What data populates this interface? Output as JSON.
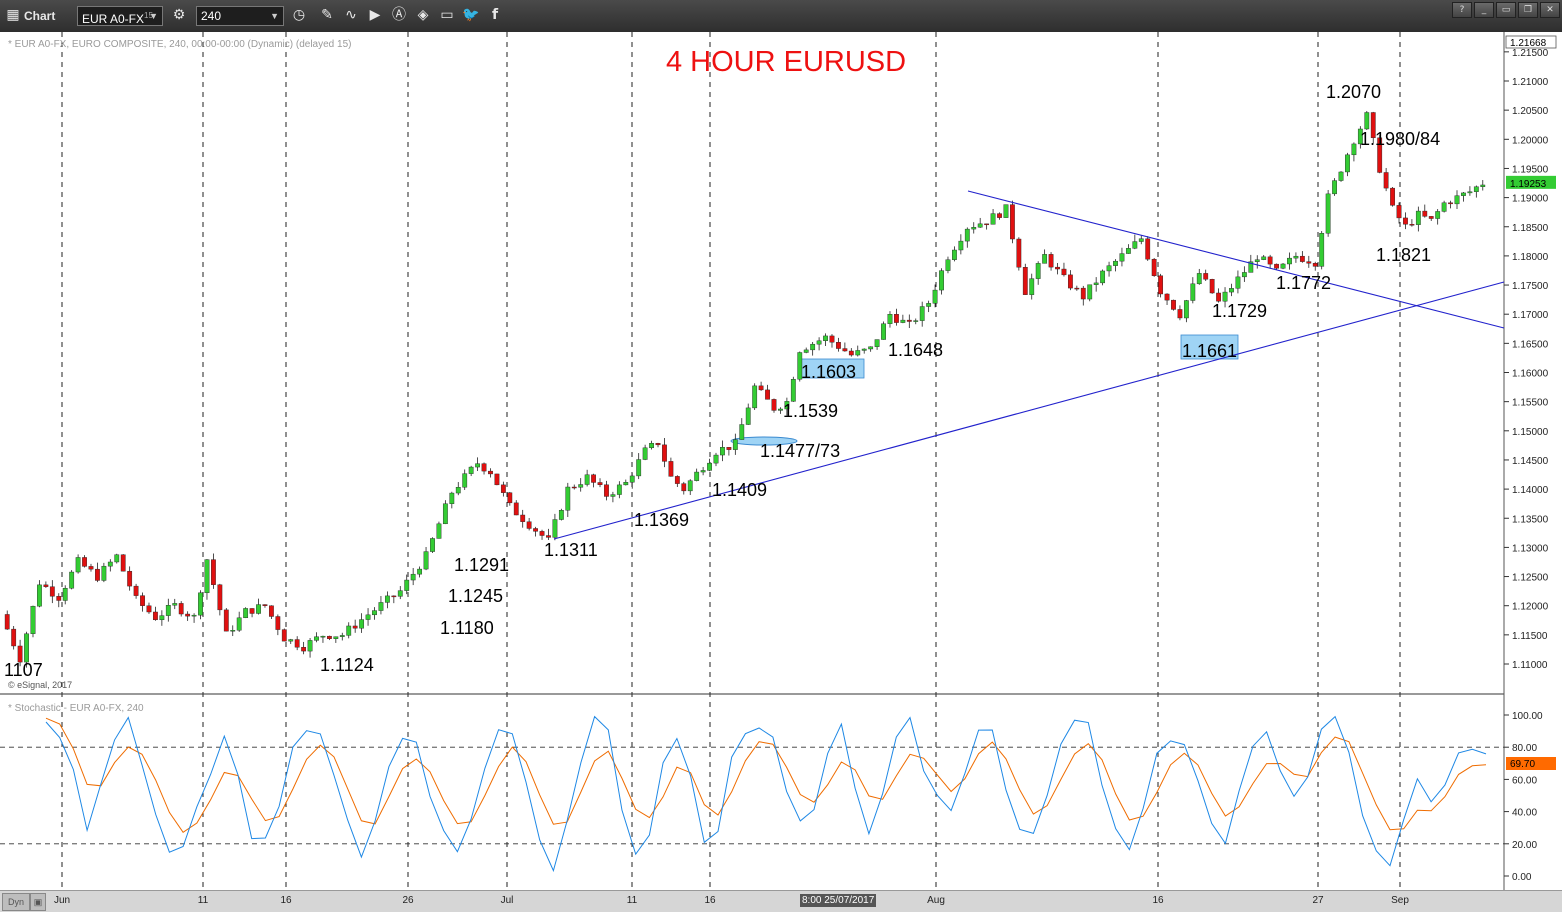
{
  "toolbar": {
    "app_title": "Chart",
    "symbol": "EUR A0-FX",
    "symbol_badge": "15",
    "interval": "240",
    "icons": [
      "grid-icon",
      "gear-icon",
      "clock-icon",
      "pencil-icon",
      "curve-icon",
      "play-icon",
      "a-icon",
      "tag-icon",
      "chat-icon",
      "twitter-icon",
      "facebook-icon",
      "help-icon",
      "minimize-icon",
      "restore-icon",
      "close-icon"
    ]
  },
  "main_panel": {
    "info_line": "* EUR A0-FX, EURO COMPOSITE, 240, 00:00-00:00 (Dynamic) (delayed 15)",
    "copyright": "© eSignal, 2017",
    "title": "4 HOUR EURUSD",
    "last_price": "1.19253",
    "top_price": "1.21668"
  },
  "stoch_panel": {
    "info_line": "* Stochastic - EUR A0-FX, 240",
    "current_value": "69.70",
    "ticks": [
      "100.00",
      "80.00",
      "60.00",
      "40.00",
      "20.00",
      "0.00"
    ]
  },
  "bottom_bar": {
    "dyn_label": "Dyn",
    "cursor_time": "8:00 25/07/2017"
  },
  "colors": {
    "up_candle": "#33cc33",
    "down_candle": "#e01010",
    "trendline": "#2222cc",
    "title": "#ee1111",
    "stoch_k": "#1e88e5",
    "stoch_d": "#ef6c00",
    "highlight": "#9fd4f5",
    "current_stoch": "#ff6a00"
  },
  "chart_data": [
    {
      "type": "candlestick",
      "title": "4 HOUR EURUSD",
      "symbol": "EUR A0-FX",
      "x_ticks": [
        "Jun",
        "11",
        "16",
        "26",
        "Jul",
        "11",
        "16",
        "Aug",
        "16",
        "27",
        "Sep"
      ],
      "y_ticks": [
        "1.21500",
        "1.21000",
        "1.20500",
        "1.20000",
        "1.19500",
        "1.19000",
        "1.18500",
        "1.18000",
        "1.17500",
        "1.17000",
        "1.16500",
        "1.16000",
        "1.15500",
        "1.15000",
        "1.14500",
        "1.14000",
        "1.13500",
        "1.13000",
        "1.12500",
        "1.12000",
        "1.11500",
        "1.11000"
      ],
      "ylim": [
        1.1055,
        1.2183
      ],
      "last_value": 1.19253,
      "annotations": [
        "1107",
        "1.1124",
        "1.1180",
        "1.1245",
        "1.1291",
        "1.1311",
        "1.1369",
        "1.1409",
        "1.1477/73",
        "1.1539",
        "1.1603",
        "1.1648",
        "1.1661",
        "1.1729",
        "1.1772",
        "1.1821",
        "1.1980/84",
        "1.2070"
      ],
      "price_path": [
        [
          0,
          1.1185
        ],
        [
          3,
          1.111
        ],
        [
          6,
          1.124
        ],
        [
          9,
          1.1215
        ],
        [
          12,
          1.1275
        ],
        [
          15,
          1.125
        ],
        [
          18,
          1.1285
        ],
        [
          21,
          1.121
        ],
        [
          24,
          1.118
        ],
        [
          27,
          1.12
        ],
        [
          30,
          1.118
        ],
        [
          32,
          1.128
        ],
        [
          35,
          1.115
        ],
        [
          38,
          1.119
        ],
        [
          41,
          1.12
        ],
        [
          44,
          1.1145
        ],
        [
          47,
          1.113
        ],
        [
          50,
          1.115
        ],
        [
          53,
          1.115
        ],
        [
          57,
          1.1185
        ],
        [
          62,
          1.1225
        ],
        [
          66,
          1.1285
        ],
        [
          70,
          1.1395
        ],
        [
          74,
          1.1445
        ],
        [
          76,
          1.143
        ],
        [
          79,
          1.137
        ],
        [
          83,
          1.133
        ],
        [
          85,
          1.1311
        ],
        [
          88,
          1.14
        ],
        [
          91,
          1.142
        ],
        [
          94,
          1.139
        ],
        [
          97,
          1.141
        ],
        [
          100,
          1.1465
        ],
        [
          102,
          1.148
        ],
        [
          104,
          1.142
        ],
        [
          106,
          1.14
        ],
        [
          109,
          1.144
        ],
        [
          111,
          1.1465
        ],
        [
          114,
          1.1477
        ],
        [
          117,
          1.1575
        ],
        [
          120,
          1.1539
        ],
        [
          122,
          1.155
        ],
        [
          124,
          1.164
        ],
        [
          128,
          1.166
        ],
        [
          132,
          1.163
        ],
        [
          135,
          1.164
        ],
        [
          138,
          1.17
        ],
        [
          141,
          1.168
        ],
        [
          144,
          1.172
        ],
        [
          147,
          1.18
        ],
        [
          150,
          1.185
        ],
        [
          153,
          1.186
        ],
        [
          156,
          1.188
        ],
        [
          159,
          1.174
        ],
        [
          162,
          1.18
        ],
        [
          165,
          1.176
        ],
        [
          168,
          1.173
        ],
        [
          171,
          1.177
        ],
        [
          174,
          1.18
        ],
        [
          177,
          1.183
        ],
        [
          180,
          1.174
        ],
        [
          183,
          1.17
        ],
        [
          186,
          1.177
        ],
        [
          189,
          1.172
        ],
        [
          192,
          1.176
        ],
        [
          195,
          1.18
        ],
        [
          198,
          1.1772
        ],
        [
          201,
          1.18
        ],
        [
          204,
          1.179
        ],
        [
          206,
          1.19
        ],
        [
          208,
          1.195
        ],
        [
          210,
          1.2
        ],
        [
          212,
          1.204
        ],
        [
          214,
          1.195
        ],
        [
          216,
          1.188
        ],
        [
          218,
          1.185
        ],
        [
          220,
          1.187
        ],
        [
          222,
          1.186
        ],
        [
          224,
          1.189
        ],
        [
          226,
          1.19
        ],
        [
          228,
          1.191
        ],
        [
          230,
          1.1925
        ]
      ]
    },
    {
      "type": "line",
      "title": "Stochastic - EUR A0-FX, 240",
      "ylim": [
        0,
        100
      ],
      "y_ticks": [
        "100.00",
        "80.00",
        "60.00",
        "40.00",
        "20.00",
        "0.00"
      ],
      "current_value": 69.7,
      "series": [
        {
          "values_k": [
            98,
            90,
            60,
            30,
            55,
            88,
            92,
            70,
            40,
            15,
            12,
            40,
            65,
            85,
            60,
            30,
            18,
            40,
            75,
            95,
            92,
            65,
            30,
            10,
            30,
            70,
            88,
            80,
            55,
            25,
            15,
            35,
            70,
            90,
            95,
            60,
            25,
            10,
            35,
            75,
            95,
            85,
            40,
            18,
            30,
            65,
            90,
            60,
            20,
            30,
            70,
            95,
            98,
            80,
            50,
            30,
            40,
            70,
            88,
            60,
            30,
            45,
            80,
            92,
            70,
            50,
            40,
            70,
            95,
            92,
            60,
            30,
            20,
            50,
            80,
            95,
            90,
            60,
            25,
            15,
            40,
            70,
            90,
            85,
            60,
            30,
            20,
            50,
            75,
            85,
            70,
            55,
            60,
            95,
            98,
            80,
            40,
            20,
            10,
            30,
            55,
            40,
            60,
            80,
            75,
            70
          ]
        }
      ]
    }
  ]
}
